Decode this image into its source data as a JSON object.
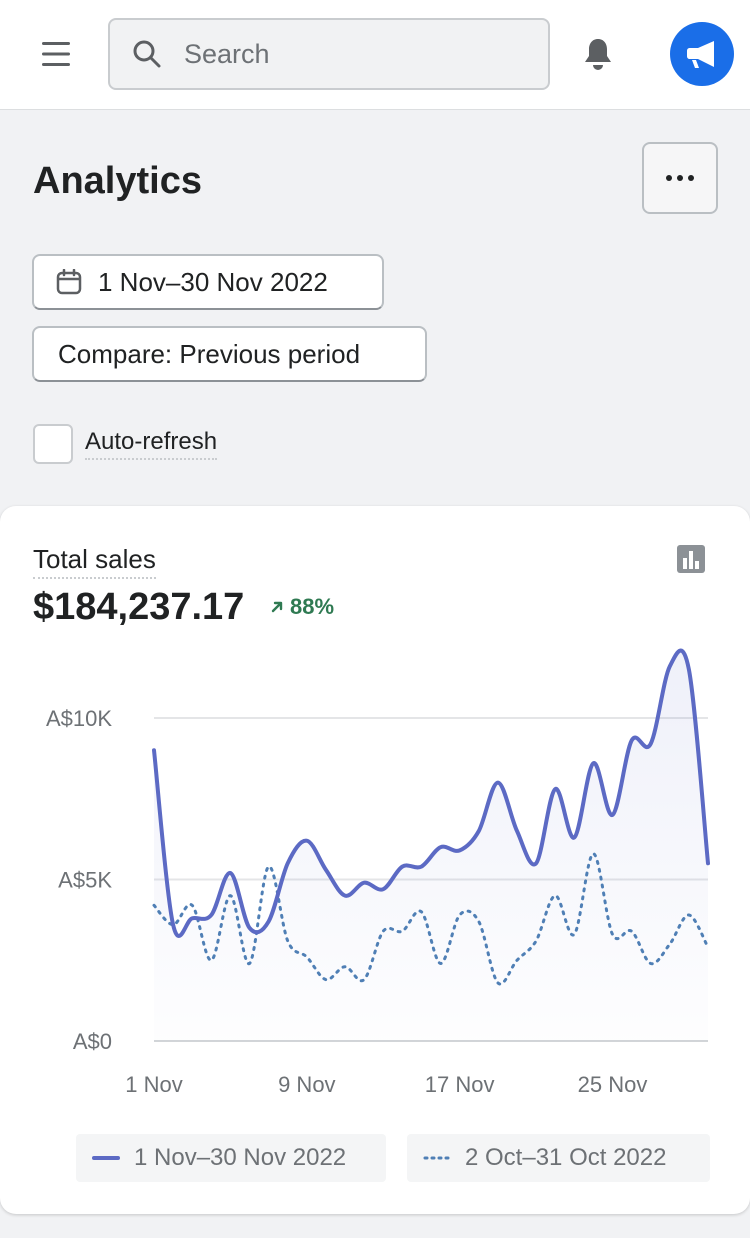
{
  "topbar": {
    "menu_icon": "hamburger-menu-icon",
    "search_placeholder": "Search",
    "search_value": "",
    "bell_icon": "bell-icon",
    "avatar_icon": "megaphone-icon",
    "avatar_color": "#1a6ee8"
  },
  "page": {
    "title": "Analytics",
    "more_icon": "ellipsis-icon",
    "date_range_label": "1 Nov–30 Nov 2022",
    "compare_label": "Compare: Previous period",
    "auto_refresh_label": "Auto-refresh",
    "auto_refresh_checked": false
  },
  "card": {
    "metric_label": "Total sales",
    "metric_value": "$184,237.17",
    "trend_value": "88%",
    "trend_direction": "up",
    "trend_color": "#2f7a52",
    "chart_icon": "bar-chart-icon"
  },
  "chart_data": {
    "type": "line",
    "title": "",
    "xlabel": "",
    "ylabel": "",
    "ylim": [
      0,
      11500
    ],
    "y_ticks": [
      {
        "value": 0,
        "label": "A$0"
      },
      {
        "value": 5000,
        "label": "A$5K"
      },
      {
        "value": 10000,
        "label": "A$10K"
      }
    ],
    "x_ticks": [
      {
        "day": 1,
        "label": "1 Nov"
      },
      {
        "day": 9,
        "label": "9 Nov"
      },
      {
        "day": 17,
        "label": "17 Nov"
      },
      {
        "day": 25,
        "label": "25 Nov"
      }
    ],
    "grid": true,
    "legend_position": "bottom",
    "series": [
      {
        "name": "1 Nov–30 Nov 2022",
        "style": "solid",
        "color": "#5c6ac4",
        "values": [
          9000,
          3600,
          3800,
          3900,
          5200,
          3500,
          3700,
          5500,
          6200,
          5300,
          4500,
          4900,
          4700,
          5400,
          5400,
          6000,
          5900,
          6500,
          8000,
          6500,
          5500,
          7800,
          6300,
          8600,
          7000,
          9300,
          9200,
          11600,
          11500,
          5500
        ]
      },
      {
        "name": "2 Oct–31 Oct 2022",
        "style": "dotted",
        "color": "#4f7fb5",
        "values": [
          4200,
          3600,
          4200,
          2500,
          4500,
          2400,
          5400,
          3100,
          2600,
          1900,
          2300,
          1900,
          3400,
          3400,
          4000,
          2400,
          3900,
          3700,
          1800,
          2500,
          3100,
          4500,
          3300,
          5800,
          3300,
          3400,
          2400,
          3000,
          3900,
          2900
        ]
      }
    ]
  }
}
